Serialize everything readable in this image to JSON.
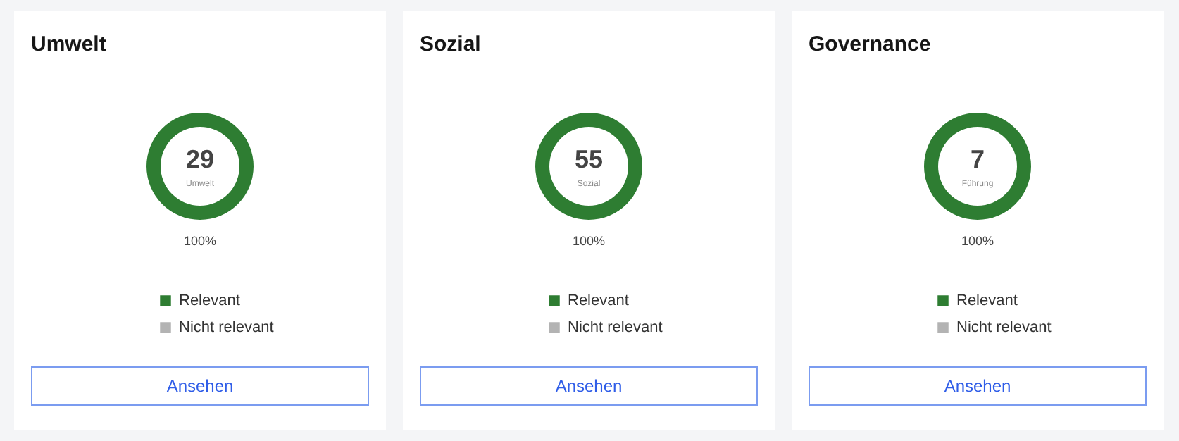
{
  "chart_data": [
    {
      "type": "donut",
      "title": "Umwelt",
      "categories": [
        "Relevant",
        "Nicht relevant"
      ],
      "values": [
        100,
        0
      ],
      "colors": [
        "#2e7d32",
        "#b3b3b3"
      ],
      "value_labels": [
        "100%",
        null
      ],
      "legend": "bottom",
      "annotations": [
        "29",
        "Umwelt",
        "Ansehen"
      ]
    },
    {
      "type": "donut",
      "title": "Sozial",
      "categories": [
        "Relevant",
        "Nicht relevant"
      ],
      "values": [
        100,
        0
      ],
      "colors": [
        "#2e7d32",
        "#b3b3b3"
      ],
      "value_labels": [
        "100%",
        null
      ],
      "legend": "bottom",
      "annotations": [
        "55",
        "Sozial",
        "Ansehen"
      ]
    },
    {
      "type": "donut",
      "title": "Governance",
      "categories": [
        "Relevant",
        "Nicht relevant"
      ],
      "values": [
        100,
        0
      ],
      "colors": [
        "#2e7d32",
        "#b3b3b3"
      ],
      "value_labels": [
        "100%",
        null
      ],
      "legend": "bottom",
      "annotations": [
        "7",
        "Führung",
        "Ansehen"
      ]
    }
  ]
}
